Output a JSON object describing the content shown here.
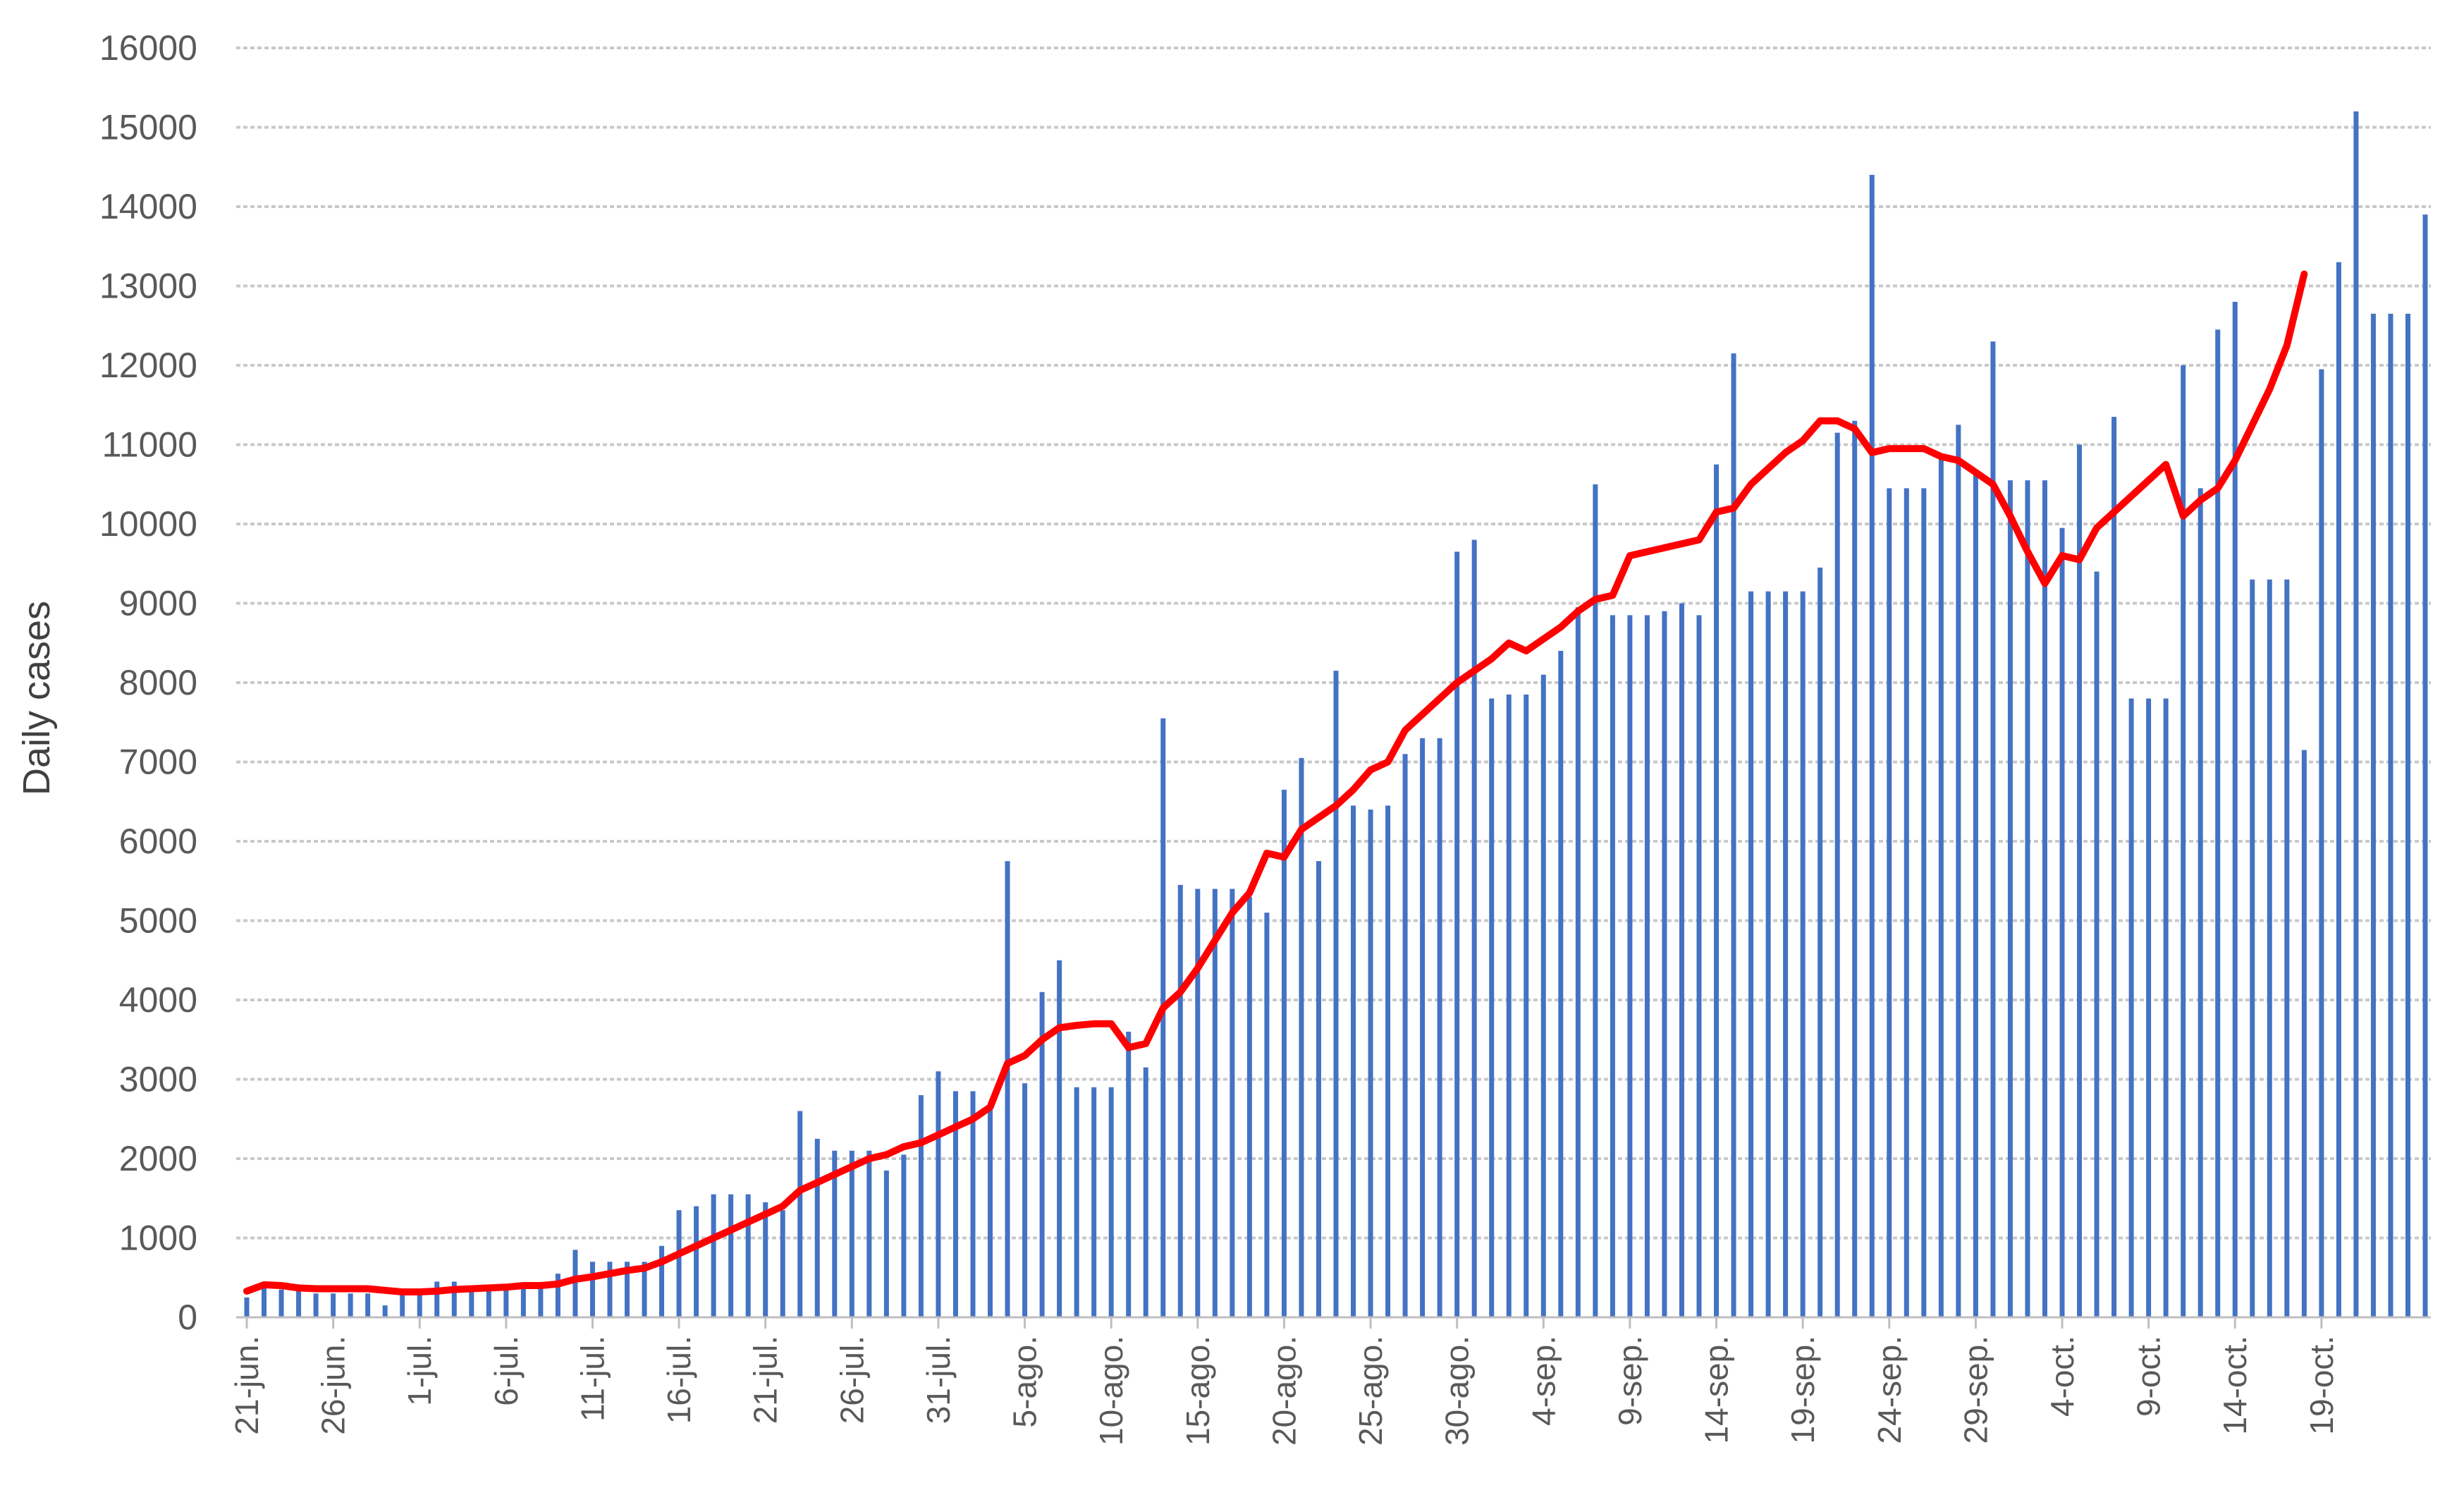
{
  "chart_data": {
    "type": "bar",
    "ylabel": "Daily cases",
    "xlabel": "",
    "ylim": [
      0,
      16000
    ],
    "yticks": [
      0,
      1000,
      2000,
      3000,
      4000,
      5000,
      6000,
      7000,
      8000,
      9000,
      10000,
      11000,
      12000,
      13000,
      14000,
      15000,
      16000
    ],
    "grid": true,
    "legend": "none",
    "x_tick_labels": [
      "21-jun.",
      "26-jun.",
      "1-jul.",
      "6-jul.",
      "11-jul.",
      "16-jul.",
      "21-jul.",
      "26-jul.",
      "31-jul.",
      "5-ago.",
      "10-ago.",
      "15-ago.",
      "20-ago.",
      "25-ago.",
      "30-ago.",
      "4-sep.",
      "9-sep.",
      "14-sep.",
      "19-sep.",
      "24-sep.",
      "29-sep.",
      "4-oct.",
      "9-oct.",
      "14-oct.",
      "19-oct."
    ],
    "x_tick_interval_days": 5,
    "series": [
      {
        "type": "bar",
        "color": "#4472c4",
        "values": [
          250,
          400,
          350,
          350,
          300,
          300,
          300,
          300,
          150,
          300,
          300,
          450,
          450,
          350,
          350,
          400,
          400,
          400,
          550,
          850,
          700,
          700,
          700,
          700,
          900,
          1350,
          1400,
          1550,
          1550,
          1550,
          1450,
          1350,
          2600,
          2250,
          2100,
          2100,
          2100,
          1850,
          2050,
          2800,
          3100,
          2850,
          2850,
          2700,
          5750,
          2950,
          4100,
          4500,
          2900,
          2900,
          2900,
          3600,
          3150,
          7550,
          5450,
          5400,
          5400,
          5400,
          5300,
          5100,
          6650,
          7050,
          5750,
          8150,
          6450,
          6400,
          6450,
          7100,
          7300,
          7300,
          9650,
          9800,
          7800,
          7850,
          7850,
          8100,
          8400,
          8950,
          10500,
          8850,
          8850,
          8850,
          8900,
          9000,
          8850,
          10750,
          12150,
          9150,
          9150,
          9150,
          9150,
          9450,
          11150,
          11300,
          14400,
          10450,
          10450,
          10450,
          10850,
          11250,
          10650,
          12300,
          10550,
          10550,
          10550,
          9950,
          11000,
          9400,
          11350,
          7800,
          7800,
          7800,
          12000,
          10450,
          12450,
          12800,
          9300,
          9300,
          9300,
          7150,
          11950,
          13300,
          15200,
          12650,
          12650,
          12650,
          13900
        ]
      },
      {
        "type": "line",
        "color": "#ff0000",
        "values": [
          330,
          410,
          400,
          370,
          360,
          360,
          360,
          360,
          340,
          320,
          320,
          330,
          350,
          360,
          370,
          380,
          400,
          400,
          420,
          480,
          510,
          550,
          590,
          620,
          700,
          800,
          900,
          1000,
          1100,
          1200,
          1300,
          1400,
          1600,
          1700,
          1800,
          1900,
          2000,
          2050,
          2150,
          2200,
          2300,
          2400,
          2500,
          2650,
          3200,
          3300,
          3500,
          3650,
          3680,
          3700,
          3700,
          3400,
          3450,
          3900,
          4100,
          4400,
          4750,
          5100,
          5350,
          5850,
          5800,
          6150,
          6300,
          6450,
          6650,
          6900,
          7000,
          7400,
          7600,
          7800,
          8000,
          8150,
          8300,
          8500,
          8400,
          8550,
          8700,
          8900,
          9050,
          9100,
          9600,
          9650,
          9700,
          9750,
          9800,
          10150,
          10200,
          10500,
          10700,
          10900,
          11050,
          11300,
          11300,
          11200,
          10900,
          10950,
          10950,
          10950,
          10850,
          10800,
          10650,
          10500,
          10100,
          9650,
          9250,
          9600,
          9550,
          9950,
          10150,
          10350,
          10550,
          10750,
          10100,
          10300,
          10450,
          10800,
          11250,
          11700,
          12250,
          13150
        ]
      }
    ]
  }
}
